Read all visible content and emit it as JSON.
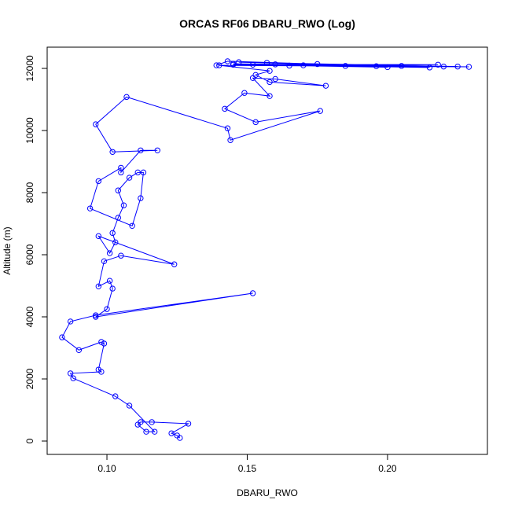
{
  "chart_data": {
    "type": "line",
    "title": "ORCAS RF06 DBARU_RWO (Log)",
    "x_label": "DBARU_RWO",
    "y_label": "Altitude (m)",
    "xlim": [
      0.0787,
      0.2356
    ],
    "ylim": [
      -430,
      12684
    ],
    "xticks": [
      {
        "value": 0.1,
        "label": "0.10"
      },
      {
        "value": 0.15,
        "label": "0.15"
      },
      {
        "value": 0.2,
        "label": "0.20"
      }
    ],
    "yticks": [
      0,
      2000,
      4000,
      6000,
      8000,
      10000,
      12000
    ],
    "grid": false,
    "markers": true,
    "series": [
      {
        "name": "DBARU_RWO",
        "color": "#0000ff",
        "x": [
          0.126,
          0.125,
          0.123,
          0.129,
          0.116,
          0.112,
          0.111,
          0.114,
          0.117,
          0.108,
          0.103,
          0.088,
          0.087,
          0.098,
          0.097,
          0.099,
          0.098,
          0.09,
          0.084,
          0.087,
          0.096,
          0.152,
          0.096,
          0.1,
          0.102,
          0.101,
          0.097,
          0.099,
          0.105,
          0.124,
          0.097,
          0.101,
          0.103,
          0.102,
          0.104,
          0.106,
          0.104,
          0.108,
          0.111,
          0.113,
          0.112,
          0.109,
          0.094,
          0.097,
          0.105,
          0.105,
          0.112,
          0.118,
          0.102,
          0.096,
          0.107,
          0.143,
          0.144,
          0.176,
          0.153,
          0.142,
          0.149,
          0.158,
          0.152,
          0.16,
          0.178,
          0.158,
          0.153,
          0.158,
          0.14,
          0.229,
          0.145,
          0.22,
          0.147,
          0.215,
          0.152,
          0.205,
          0.145,
          0.2,
          0.157,
          0.225,
          0.16,
          0.218,
          0.165,
          0.196,
          0.17,
          0.185,
          0.175,
          0.143,
          0.139
        ],
        "values": [
          100,
          180,
          250,
          560,
          610,
          610,
          530,
          300,
          300,
          1140,
          1440,
          2020,
          2180,
          2230,
          2300,
          3140,
          3190,
          2930,
          3340,
          3850,
          4050,
          4760,
          4000,
          4250,
          4910,
          5160,
          4980,
          5790,
          5970,
          5690,
          6600,
          6050,
          6400,
          6700,
          7190,
          7590,
          8070,
          8480,
          8650,
          8650,
          7820,
          6930,
          7490,
          8370,
          8800,
          8650,
          9360,
          9360,
          9310,
          10200,
          11080,
          10070,
          9690,
          10630,
          10270,
          10700,
          11210,
          11110,
          11690,
          11660,
          11440,
          11560,
          11790,
          11920,
          12100,
          12050,
          12150,
          12060,
          12200,
          12030,
          12120,
          12080,
          12120,
          12040,
          12180,
          12060,
          12130,
          12120,
          12090,
          12070,
          12100,
          12080,
          12140,
          12230,
          12100
        ]
      }
    ]
  }
}
